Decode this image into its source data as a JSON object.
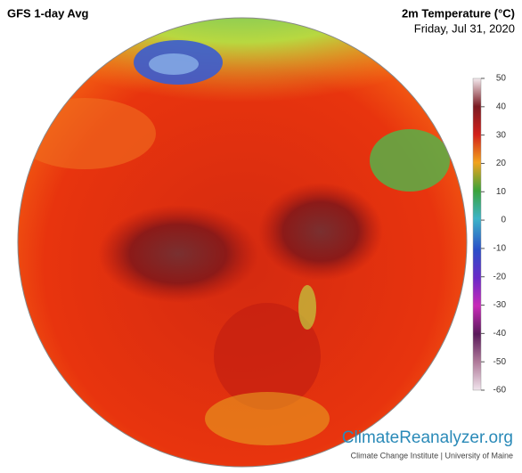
{
  "header": {
    "title": "GFS 1-day Avg",
    "variable": "2m Temperature (°C)",
    "date": "Friday, Jul 31, 2020"
  },
  "colorbar": {
    "lim": [
      -60,
      50
    ],
    "ticks": [
      50,
      40,
      30,
      20,
      10,
      0,
      -10,
      -20,
      -30,
      -40,
      -50,
      -60
    ]
  },
  "footer": {
    "brand": "ClimateReanalyzer.org",
    "credit": "Climate Change Institute | University of Maine"
  }
}
